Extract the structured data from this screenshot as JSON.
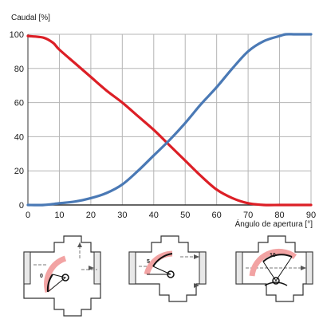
{
  "chart_data": {
    "type": "line",
    "ylabel": "Caudal [%]",
    "xlabel": "Ángulo de apertura [°]",
    "xlim": [
      0,
      90
    ],
    "ylim": [
      0,
      100
    ],
    "x_ticks": [
      0,
      10,
      20,
      30,
      40,
      50,
      60,
      70,
      80,
      90
    ],
    "y_ticks": [
      0,
      20,
      40,
      60,
      80,
      100
    ],
    "grid": true,
    "series": [
      {
        "color": "#dc1f26",
        "x": [
          0,
          5,
          8,
          10,
          15,
          20,
          25,
          30,
          35,
          40,
          45,
          50,
          55,
          60,
          65,
          70,
          75,
          80,
          85,
          90
        ],
        "y": [
          99,
          98,
          95,
          91,
          83,
          75,
          67,
          60,
          52,
          44,
          35,
          26,
          17,
          9,
          4,
          1,
          0,
          0,
          0,
          0
        ]
      },
      {
        "color": "#4a79b5",
        "x": [
          0,
          5,
          10,
          15,
          20,
          25,
          30,
          35,
          40,
          45,
          50,
          55,
          60,
          65,
          70,
          75,
          80,
          82,
          85,
          90
        ],
        "y": [
          0,
          0,
          1,
          2,
          4,
          7,
          12,
          20,
          29,
          38,
          48,
          59,
          69,
          80,
          90,
          96,
          99,
          100,
          100,
          100
        ]
      }
    ]
  },
  "valve_diagrams": [
    {
      "position_label": "0"
    },
    {
      "position_label": "5"
    },
    {
      "position_label": "10"
    }
  ]
}
